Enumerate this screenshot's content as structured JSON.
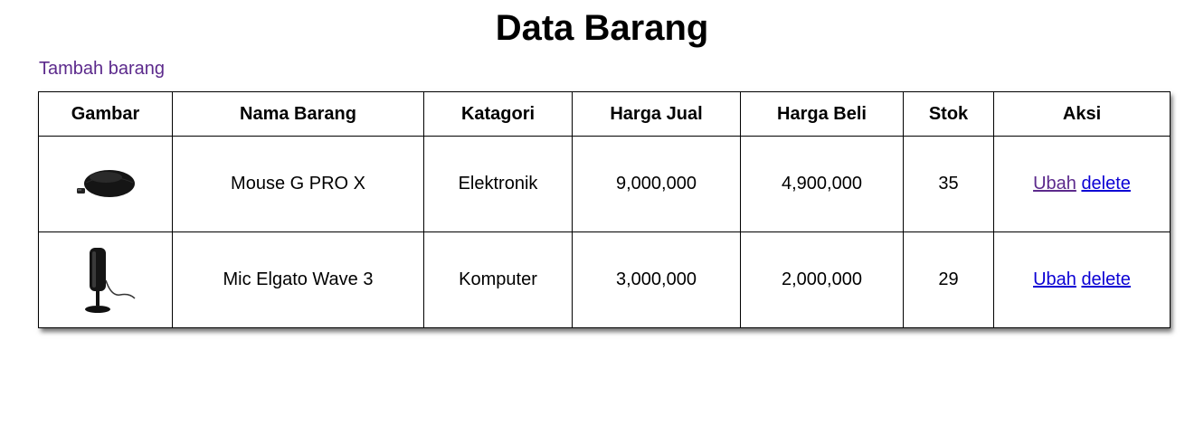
{
  "page": {
    "title": "Data Barang",
    "add_link": "Tambah barang"
  },
  "table": {
    "headers": [
      "Gambar",
      "Nama Barang",
      "Katagori",
      "Harga Jual",
      "Harga Beli",
      "Stok",
      "Aksi"
    ],
    "rows": [
      {
        "image_icon": "mouse-image",
        "name": "Mouse G PRO X",
        "category": "Elektronik",
        "sell_price": "9,000,000",
        "buy_price": "4,900,000",
        "stock": "35",
        "edit_label": "Ubah",
        "delete_label": "delete"
      },
      {
        "image_icon": "microphone-image",
        "name": "Mic Elgato Wave 3",
        "category": "Komputer",
        "sell_price": "3,000,000",
        "buy_price": "2,000,000",
        "stock": "29",
        "edit_label": "Ubah",
        "delete_label": "delete"
      }
    ]
  },
  "colors": {
    "visited_link": "#5c2a8c",
    "link": "#0b00d4"
  }
}
